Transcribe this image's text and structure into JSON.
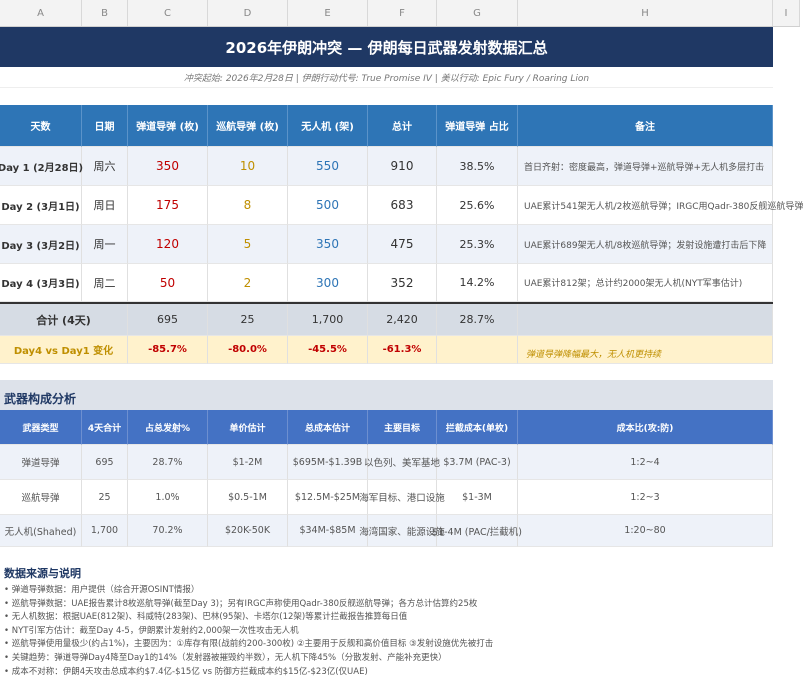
{
  "columns": [
    "A",
    "B",
    "C",
    "D",
    "E",
    "F",
    "G",
    "H",
    "I"
  ],
  "title": "2026年伊朗冲突 — 伊朗每日武器发射数据汇总",
  "subtitle": "冲突起始: 2026年2月28日 | 伊朗行动代号: True Promise IV | 美以行动: Epic Fury / Roaring Lion",
  "daily": {
    "headers": [
      "天数",
      "日期",
      "弹道导弹 (枚)",
      "巡航导弹 (枚)",
      "无人机 (架)",
      "总计",
      "弹道导弹 占比",
      "备注"
    ],
    "rows": [
      [
        "Day 1 (2月28日)",
        "周六",
        "350",
        "10",
        "550",
        "910",
        "38.5%",
        "首日齐射：密度最高，弹道导弹+巡航导弹+无人机多层打击"
      ],
      [
        "Day 2 (3月1日)",
        "周日",
        "175",
        "8",
        "500",
        "683",
        "25.6%",
        "UAE累计541架无人机/2枚巡航导弹；IRGC用Qadr-380反舰巡航导弹"
      ],
      [
        "Day 3 (3月2日)",
        "周一",
        "120",
        "5",
        "350",
        "475",
        "25.3%",
        "UAE累计689架无人机/8枚巡航导弹；发射设施遭打击后下降"
      ],
      [
        "Day 4 (3月3日)",
        "周二",
        "50",
        "2",
        "300",
        "352",
        "14.2%",
        "UAE累计812架；总计约2000架无人机(NYT军事估计)"
      ]
    ],
    "total": [
      "合计 (4天)",
      "695",
      "25",
      "1,700",
      "2,420",
      "28.7%"
    ],
    "change": [
      "Day4 vs Day1 变化",
      "-85.7%",
      "-80.0%",
      "-45.5%",
      "-61.3%",
      "弹道导弹降幅最大，无人机更持续"
    ]
  },
  "composition": {
    "section_title": "武器构成分析",
    "headers": [
      "武器类型",
      "4天合计",
      "占总发射%",
      "单价估计",
      "总成本估计",
      "主要目标",
      "拦截成本(单枚)",
      "成本比(攻:防)"
    ],
    "rows": [
      [
        "弹道导弹",
        "695",
        "28.7%",
        "$1-2M",
        "$695M-$1.39B",
        "以色列、美军基地",
        "$3.7M (PAC-3)",
        "1:2~4"
      ],
      [
        "巡航导弹",
        "25",
        "1.0%",
        "$0.5-1M",
        "$12.5M-$25M",
        "海军目标、港口设施",
        "$1-3M",
        "1:2~3"
      ],
      [
        "无人机(Shahed)",
        "1,700",
        "70.2%",
        "$20K-50K",
        "$34M-$85M",
        "海湾国家、能源设施",
        "$1-4M (PAC/拦截机)",
        "1:20~80"
      ]
    ]
  },
  "notes": {
    "title": "数据来源与说明",
    "items": [
      "• 弹道导弹数据：用户提供（综合开源OSINT情报）",
      "• 巡航导弹数据：UAE报告累计8枚巡航导弹(截至Day 3)；另有IRGC声称使用Qadr-380反舰巡航导弹；各方总计估算约25枚",
      "• 无人机数据：根据UAE(812架)、科威特(283架)、巴林(95架)、卡塔尔(12架)等累计拦截报告推算每日值",
      "• NYT引军方估计：截至Day 4-5，伊朗累计发射约2,000架一次性攻击无人机",
      "• 巡航导弹使用量极少(约占1%)，主要因为：①库存有限(战前约200-300枚) ②主要用于反舰和高价值目标 ③发射设施优先被打击",
      "• 关键趋势：弹道导弹Day4降至Day1的14%（发射器被摧毁约半数），无人机下降45%（分散发射、产能补充更快）",
      "• 成本不对称：伊朗4天攻击总成本约$7.4亿-$15亿 vs 防御方拦截成本约$15亿-$23亿(仅UAE)"
    ]
  },
  "colors": {
    "title_bg": "#1f3864",
    "header_bg": "#2e75b6",
    "header2_bg": "#4472c4",
    "ballistic": "#c00000",
    "cruise": "#bf8f00",
    "drone": "#2e75b6",
    "change_bg": "#fff2cc"
  }
}
